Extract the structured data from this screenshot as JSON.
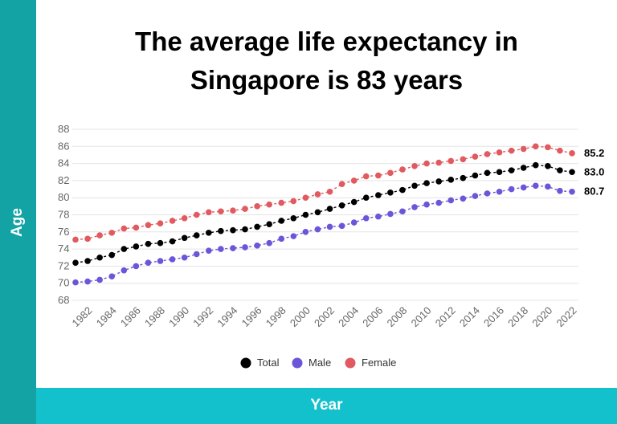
{
  "title_lines": [
    "The average life expectancy in",
    "Singapore is 83 years"
  ],
  "chart_data": {
    "type": "line",
    "title": "The average life expectancy in Singapore is 83 years",
    "xlabel": "Year",
    "ylabel": "Age",
    "x": [
      1981,
      1982,
      1983,
      1984,
      1985,
      1986,
      1987,
      1988,
      1989,
      1990,
      1991,
      1992,
      1993,
      1994,
      1995,
      1996,
      1997,
      1998,
      1999,
      2000,
      2001,
      2002,
      2003,
      2004,
      2005,
      2006,
      2007,
      2008,
      2009,
      2010,
      2011,
      2012,
      2013,
      2014,
      2015,
      2016,
      2017,
      2018,
      2019,
      2020,
      2021,
      2022
    ],
    "x_tick_labels": [
      "1982",
      "1984",
      "1986",
      "1988",
      "1990",
      "1992",
      "1994",
      "1996",
      "1998",
      "2000",
      "2002",
      "2004",
      "2006",
      "2008",
      "2010",
      "2012",
      "2014",
      "2016",
      "2018",
      "2020",
      "2022"
    ],
    "y_tick_labels": [
      "68",
      "70",
      "72",
      "74",
      "76",
      "78",
      "80",
      "82",
      "84",
      "86",
      "88"
    ],
    "ylim": [
      68,
      88
    ],
    "xlim": [
      1981,
      2022
    ],
    "grid": true,
    "legend_position": "bottom",
    "series": [
      {
        "name": "Total",
        "color": "#000000",
        "values": [
          72.4,
          72.6,
          73.0,
          73.3,
          74.0,
          74.3,
          74.6,
          74.7,
          74.9,
          75.3,
          75.6,
          75.9,
          76.1,
          76.2,
          76.3,
          76.6,
          76.9,
          77.3,
          77.6,
          78.0,
          78.3,
          78.7,
          79.1,
          79.5,
          80.0,
          80.3,
          80.6,
          80.9,
          81.4,
          81.7,
          81.9,
          82.1,
          82.3,
          82.6,
          82.9,
          83.0,
          83.2,
          83.5,
          83.8,
          83.7,
          83.2,
          83.0
        ]
      },
      {
        "name": "Male",
        "color": "#6c55d9",
        "values": [
          70.1,
          70.2,
          70.4,
          70.8,
          71.5,
          72.0,
          72.4,
          72.6,
          72.8,
          73.0,
          73.4,
          73.8,
          74.0,
          74.1,
          74.2,
          74.4,
          74.7,
          75.2,
          75.5,
          76.0,
          76.3,
          76.6,
          76.7,
          77.1,
          77.6,
          77.8,
          78.1,
          78.4,
          78.9,
          79.2,
          79.4,
          79.7,
          79.9,
          80.2,
          80.5,
          80.7,
          81.0,
          81.2,
          81.4,
          81.3,
          80.8,
          80.7
        ]
      },
      {
        "name": "Female",
        "color": "#e05a60",
        "values": [
          75.1,
          75.2,
          75.6,
          75.9,
          76.4,
          76.5,
          76.8,
          77.0,
          77.3,
          77.6,
          78.0,
          78.3,
          78.4,
          78.5,
          78.7,
          79.0,
          79.2,
          79.4,
          79.6,
          80.0,
          80.4,
          80.7,
          81.6,
          82.0,
          82.5,
          82.6,
          82.9,
          83.3,
          83.7,
          84.0,
          84.1,
          84.3,
          84.5,
          84.8,
          85.1,
          85.3,
          85.5,
          85.7,
          86.0,
          85.9,
          85.5,
          85.2
        ]
      }
    ],
    "end_labels": [
      "83.0",
      "80.7",
      "85.2"
    ]
  }
}
